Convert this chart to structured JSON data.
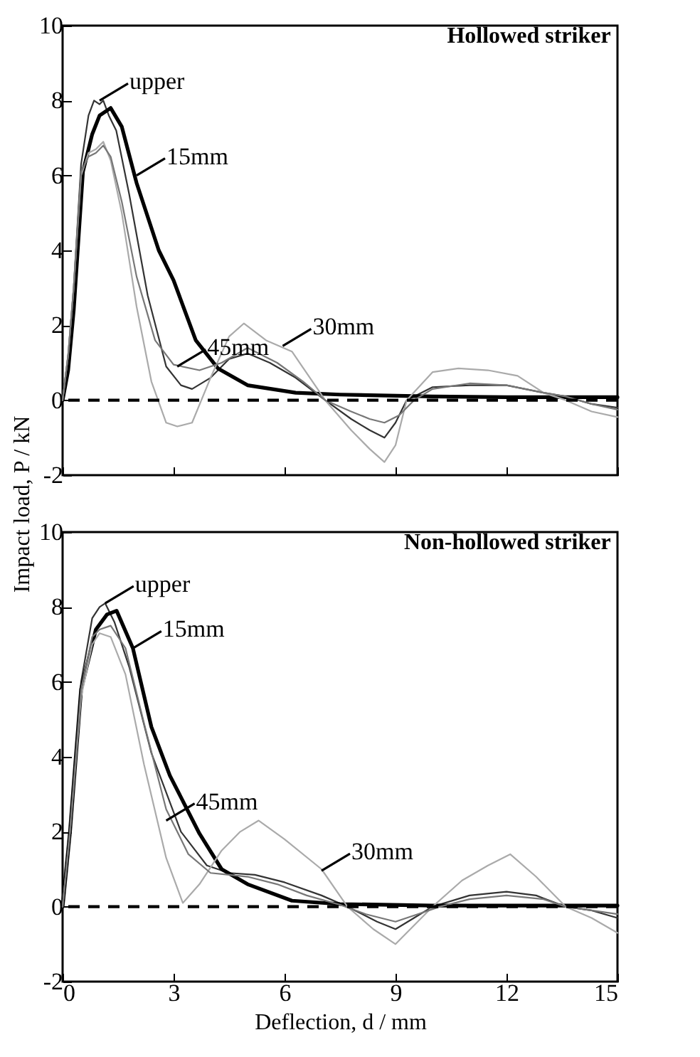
{
  "chart_data": [
    {
      "type": "line",
      "title": "Hollowed striker",
      "ylabel": "Impact load, P / kN",
      "xlim": [
        0,
        15
      ],
      "xticks": [
        0,
        3,
        6,
        9,
        12,
        15
      ],
      "ylim": [
        -2,
        10
      ],
      "yticks": [
        -2,
        0,
        2,
        4,
        6,
        8,
        10
      ],
      "tick_labels": "y",
      "line_style": "solid",
      "series": [
        {
          "color": "#333333",
          "x": [
            0,
            0.15,
            0.3,
            0.5,
            0.7,
            0.85,
            1.0,
            1.1,
            1.25,
            1.45,
            1.8,
            2.3,
            2.8,
            3.2,
            3.5,
            4.0,
            4.5,
            5.0,
            5.6,
            6.3,
            7.1,
            7.8,
            8.3,
            8.7,
            9.0,
            9.3,
            10.0,
            11.0,
            12.0,
            13.0,
            13.6,
            14.3,
            15
          ],
          "values": [
            0,
            1.2,
            3.0,
            6.3,
            7.6,
            8.0,
            7.9,
            8.0,
            7.6,
            7.2,
            5.5,
            2.8,
            0.9,
            0.4,
            0.3,
            0.6,
            1.1,
            1.25,
            1.0,
            0.6,
            0.0,
            -0.5,
            -0.8,
            -1.0,
            -0.6,
            0.0,
            0.35,
            0.4,
            0.4,
            0.2,
            0.1,
            -0.1,
            -0.2
          ]
        },
        {
          "color": "#000000",
          "x": [
            0,
            0.15,
            0.3,
            0.55,
            0.8,
            1.0,
            1.3,
            1.6,
            2.0,
            2.6,
            3.0,
            3.6,
            4.2,
            5.0,
            6.3,
            7.5,
            10.0,
            12,
            15
          ],
          "values": [
            0,
            0.8,
            2.4,
            6.1,
            7.1,
            7.6,
            7.8,
            7.3,
            5.8,
            4.0,
            3.2,
            1.6,
            0.85,
            0.4,
            0.2,
            0.15,
            0.1,
            0.08,
            0.08
          ]
        },
        {
          "color": "#aaaaaa",
          "x": [
            0,
            0.15,
            0.3,
            0.5,
            0.7,
            0.9,
            1.1,
            1.3,
            1.6,
            2.0,
            2.4,
            2.8,
            3.1,
            3.5,
            4.0,
            4.5,
            4.9,
            5.5,
            6.2,
            7.1,
            7.8,
            8.3,
            8.7,
            9.0,
            9.3,
            10.0,
            10.7,
            11.5,
            12.3,
            13.0,
            13.6,
            14.3,
            15
          ],
          "values": [
            0,
            1.2,
            3.0,
            6.0,
            6.6,
            6.7,
            6.9,
            6.4,
            5.0,
            2.5,
            0.5,
            -0.6,
            -0.7,
            -0.6,
            0.6,
            1.7,
            2.05,
            1.6,
            1.3,
            0.0,
            -0.8,
            -1.3,
            -1.65,
            -1.2,
            0.0,
            0.75,
            0.85,
            0.8,
            0.65,
            0.2,
            0.0,
            -0.3,
            -0.45
          ]
        },
        {
          "color": "#777777",
          "x": [
            0,
            0.15,
            0.3,
            0.5,
            0.7,
            0.9,
            1.1,
            1.3,
            1.6,
            2.0,
            2.5,
            3.0,
            3.7,
            4.3,
            5.0,
            5.8,
            6.5,
            7.1,
            7.8,
            8.3,
            8.7,
            9.1,
            9.5,
            10.0,
            11.0,
            12.0,
            13.0,
            13.6,
            14.3,
            15
          ],
          "values": [
            0,
            1.2,
            3.0,
            6.1,
            6.5,
            6.6,
            6.8,
            6.5,
            5.3,
            3.3,
            1.6,
            0.95,
            0.8,
            1.0,
            1.4,
            1.0,
            0.5,
            0.0,
            -0.3,
            -0.5,
            -0.6,
            -0.4,
            0.0,
            0.3,
            0.45,
            0.4,
            0.2,
            0.1,
            -0.1,
            -0.25
          ]
        }
      ],
      "ref_lines": [
        {
          "axis": "y",
          "value": 0,
          "line_style": "dashed",
          "color": "#000000"
        }
      ],
      "annotations": [
        {
          "text": "upper",
          "x": 1.0,
          "y": 8.0
        },
        {
          "text": "15mm",
          "x": 2.0,
          "y": 6.0
        },
        {
          "text": "45mm",
          "x": 3.1,
          "y": 0.9
        },
        {
          "text": "30mm",
          "x": 5.95,
          "y": 1.45
        }
      ]
    },
    {
      "type": "line",
      "title": "Non-hollowed striker",
      "xlabel": "Deflection, d / mm",
      "xlim": [
        0,
        15
      ],
      "xticks": [
        0,
        3,
        6,
        9,
        12,
        15
      ],
      "ylim": [
        -2,
        10
      ],
      "yticks": [
        -2,
        0,
        2,
        4,
        6,
        8,
        10
      ],
      "line_style": "solid",
      "series": [
        {
          "color": "#333333",
          "x": [
            0,
            0.2,
            0.5,
            0.8,
            1.0,
            1.15,
            1.4,
            1.8,
            2.4,
            3.2,
            3.9,
            4.5,
            5.2,
            6.0,
            7.0,
            7.7,
            8.5,
            9.0,
            9.5,
            10.0,
            11.0,
            12.0,
            12.8,
            13.6,
            14.3,
            15
          ],
          "values": [
            0,
            2.0,
            6.0,
            7.7,
            8.0,
            8.1,
            7.6,
            6.4,
            4.1,
            2.0,
            1.1,
            0.9,
            0.85,
            0.65,
            0.3,
            0.0,
            -0.4,
            -0.6,
            -0.3,
            0.0,
            0.3,
            0.4,
            0.3,
            0.0,
            -0.1,
            -0.3
          ]
        },
        {
          "color": "#000000",
          "x": [
            0,
            0.2,
            0.5,
            0.9,
            1.2,
            1.46,
            1.9,
            2.4,
            2.9,
            3.7,
            4.3,
            5.0,
            6.2,
            7.5,
            10,
            15
          ],
          "values": [
            0,
            2.0,
            5.8,
            7.4,
            7.8,
            7.9,
            6.9,
            4.8,
            3.5,
            1.95,
            1.0,
            0.6,
            0.16,
            0.07,
            0.03,
            0.03
          ]
        },
        {
          "color": "#aaaaaa",
          "x": [
            0,
            0.2,
            0.5,
            0.8,
            1.0,
            1.3,
            1.7,
            2.2,
            2.8,
            3.25,
            3.7,
            4.3,
            4.8,
            5.3,
            6.0,
            7.0,
            7.7,
            8.4,
            9.0,
            9.5,
            10.0,
            10.8,
            11.5,
            12.1,
            12.8,
            13.6,
            14.3,
            15
          ],
          "values": [
            0,
            2.0,
            5.6,
            7.0,
            7.3,
            7.2,
            6.2,
            3.8,
            1.3,
            0.1,
            0.6,
            1.5,
            2.0,
            2.3,
            1.8,
            1.0,
            0.0,
            -0.6,
            -1.0,
            -0.5,
            0.0,
            0.7,
            1.1,
            1.4,
            0.8,
            0.0,
            -0.3,
            -0.7
          ]
        },
        {
          "color": "#777777",
          "x": [
            0,
            0.2,
            0.5,
            0.8,
            1.0,
            1.3,
            1.7,
            2.2,
            2.8,
            3.4,
            4.0,
            4.5,
            5.0,
            5.8,
            6.6,
            7.5,
            8.2,
            9.0,
            9.6,
            10.2,
            11,
            12,
            13,
            13.6,
            14.3,
            15
          ],
          "values": [
            0,
            2.0,
            5.8,
            7.2,
            7.4,
            7.5,
            6.9,
            4.9,
            2.6,
            1.4,
            0.9,
            0.85,
            0.8,
            0.6,
            0.3,
            0.05,
            -0.2,
            -0.4,
            -0.2,
            0.0,
            0.2,
            0.3,
            0.2,
            0.0,
            -0.1,
            -0.2
          ]
        }
      ],
      "ref_lines": [
        {
          "axis": "y",
          "value": 0,
          "line_style": "dashed",
          "color": "#000000"
        }
      ],
      "annotations": [
        {
          "text": "upper",
          "x": 1.15,
          "y": 8.1
        },
        {
          "text": "15mm",
          "x": 1.9,
          "y": 6.9
        },
        {
          "text": "45mm",
          "x": 2.8,
          "y": 2.3
        },
        {
          "text": "30mm",
          "x": 7.0,
          "y": 0.96
        }
      ]
    }
  ]
}
